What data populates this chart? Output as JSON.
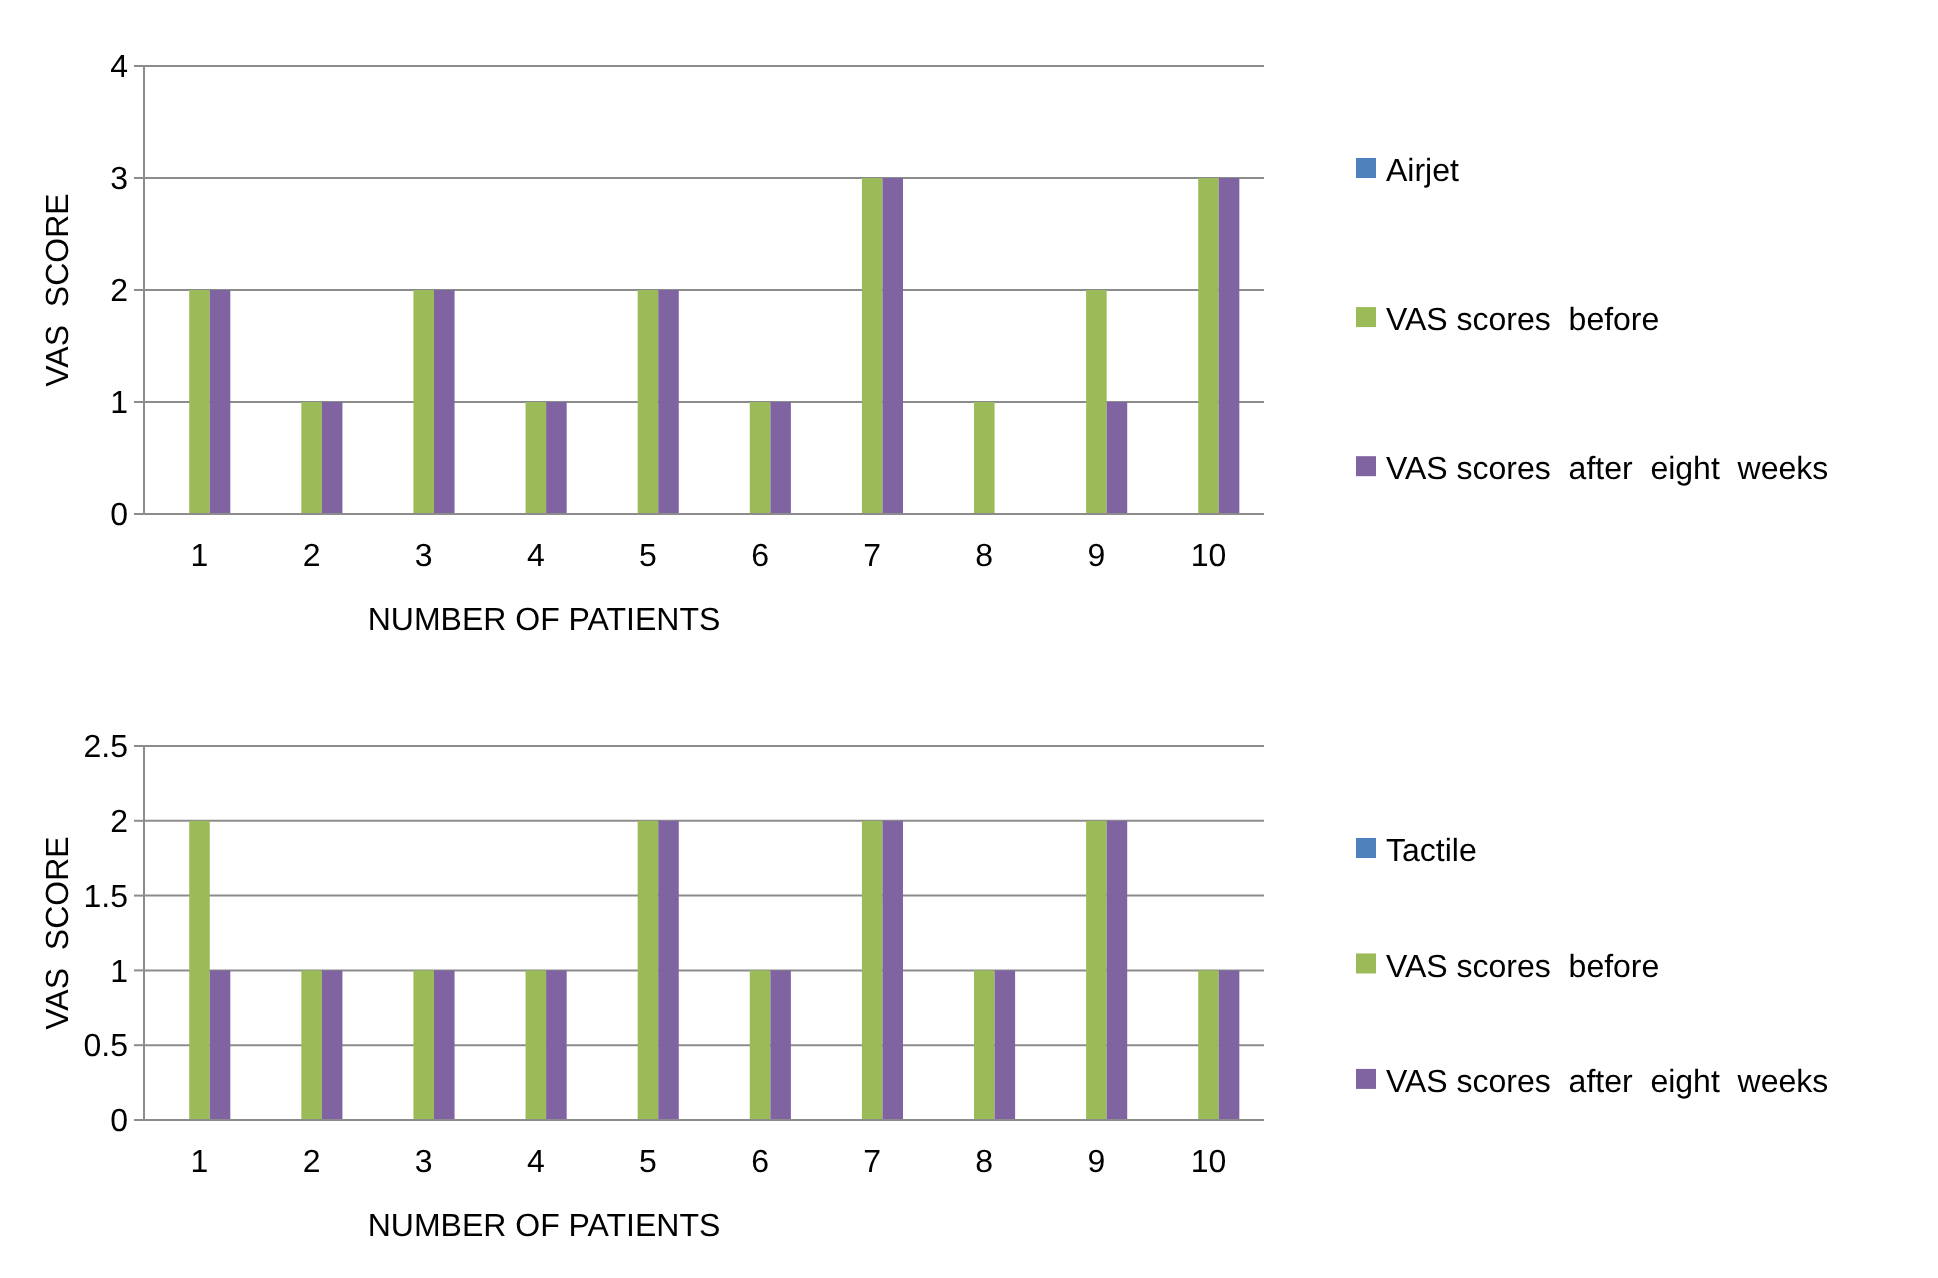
{
  "chart_data": [
    {
      "type": "bar",
      "xlabel": "NUMBER OF PATIENTS",
      "ylabel": "VAS  SCORE",
      "categories": [
        "1",
        "2",
        "3",
        "4",
        "5",
        "6",
        "7",
        "8",
        "9",
        "10"
      ],
      "ylim": [
        0,
        4
      ],
      "yticks": [
        0,
        1,
        2,
        3,
        4
      ],
      "grid": "y",
      "legend": "right",
      "series": [
        {
          "name": "Airjet",
          "color": "#4f81bd",
          "values": [
            0,
            0,
            0,
            0,
            0,
            0,
            0,
            0,
            0,
            0
          ]
        },
        {
          "name": "VAS scores  before",
          "color": "#9bbb59",
          "values": [
            2,
            1,
            2,
            1,
            2,
            1,
            3,
            1,
            2,
            3
          ]
        },
        {
          "name": "VAS scores  after  eight  weeks",
          "color": "#8064a2",
          "values": [
            2,
            1,
            2,
            1,
            2,
            1,
            3,
            0,
            1,
            3
          ]
        }
      ]
    },
    {
      "type": "bar",
      "xlabel": "NUMBER OF PATIENTS",
      "ylabel": "VAS  SCORE",
      "categories": [
        "1",
        "2",
        "3",
        "4",
        "5",
        "6",
        "7",
        "8",
        "9",
        "10"
      ],
      "ylim": [
        0,
        2.5
      ],
      "yticks": [
        0,
        0.5,
        1,
        1.5,
        2,
        2.5
      ],
      "grid": "y",
      "legend": "right",
      "series": [
        {
          "name": "Tactile",
          "color": "#4f81bd",
          "values": [
            0,
            0,
            0,
            0,
            0,
            0,
            0,
            0,
            0,
            0
          ]
        },
        {
          "name": "VAS scores  before",
          "color": "#9bbb59",
          "values": [
            2,
            1,
            1,
            1,
            2,
            1,
            2,
            1,
            2,
            1
          ]
        },
        {
          "name": "VAS scores  after  eight  weeks",
          "color": "#8064a2",
          "values": [
            1,
            1,
            1,
            1,
            2,
            1,
            2,
            1,
            2,
            1
          ]
        }
      ]
    }
  ]
}
